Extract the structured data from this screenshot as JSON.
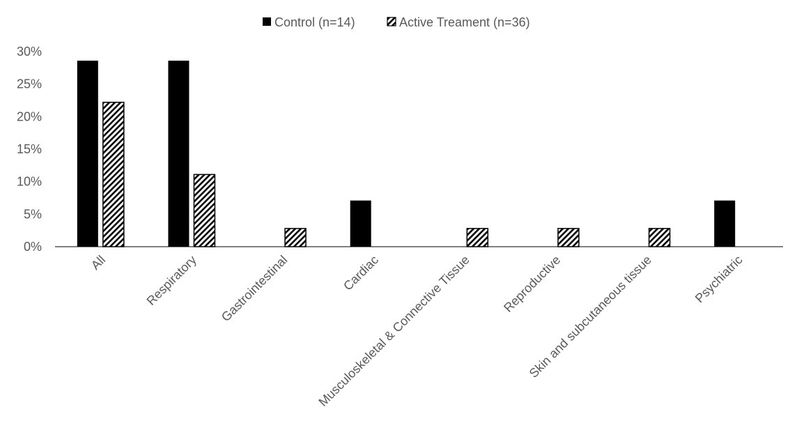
{
  "chart_data": {
    "type": "bar",
    "title": "",
    "xlabel": "",
    "ylabel": "",
    "ylim": [
      0,
      0.3
    ],
    "yticks": [
      0,
      0.05,
      0.1,
      0.15,
      0.2,
      0.25,
      0.3
    ],
    "ytick_labels": [
      "0%",
      "5%",
      "10%",
      "15%",
      "20%",
      "25%",
      "30%"
    ],
    "grid": false,
    "legend_position": "top-center",
    "categories": [
      "All",
      "Respiratory",
      "Gastrointestinal",
      "Cardiac",
      "Musculoskeletal & Connective Tissue",
      "Reproductive",
      "Skin and subcutaneous tissue",
      "Psychiatric"
    ],
    "series": [
      {
        "name": "Control (n=14)",
        "style": "solid",
        "color": "#000000",
        "values": [
          0.286,
          0.286,
          0,
          0.071,
          0,
          0,
          0,
          0.071
        ]
      },
      {
        "name": "Active Treament (n=36)",
        "style": "diagonal-hatch",
        "color": "#000000",
        "values": [
          0.222,
          0.111,
          0.028,
          0,
          0.028,
          0.028,
          0.028,
          0
        ]
      }
    ]
  }
}
